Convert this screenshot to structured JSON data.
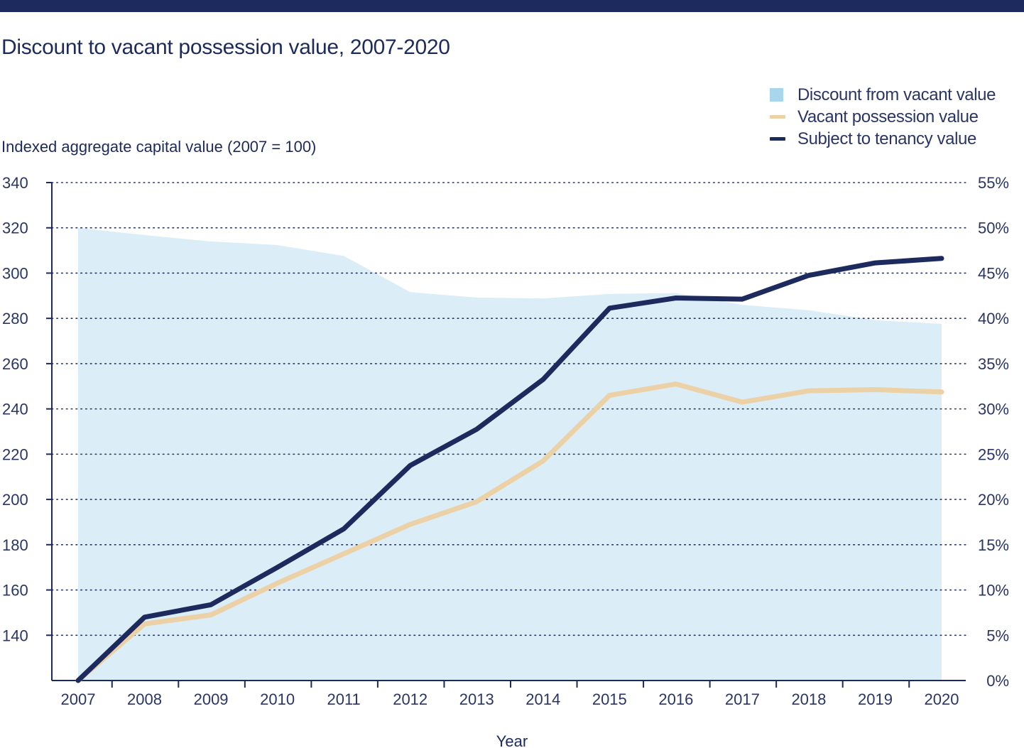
{
  "chart_data": {
    "type": "line",
    "title": "Discount to vacant possession value, 2007-2020",
    "ylabel": "Indexed aggregate capital value (2007 = 100)",
    "xlabel": "Year",
    "categories": [
      "2007",
      "2008",
      "2009",
      "2010",
      "2011",
      "2012",
      "2013",
      "2014",
      "2015",
      "2016",
      "2017",
      "2018",
      "2019",
      "2020"
    ],
    "y_left": {
      "min": 120,
      "max": 340,
      "ticks": [
        140,
        160,
        180,
        200,
        220,
        240,
        260,
        280,
        300,
        320,
        340
      ]
    },
    "y_right": {
      "min": 0,
      "max": 55,
      "ticks": [
        "0%",
        "5%",
        "10%",
        "15%",
        "20%",
        "25%",
        "30%",
        "35%",
        "40%",
        "45%",
        "50%",
        "55%"
      ]
    },
    "grid": true,
    "legend_position": "top-right",
    "series": [
      {
        "name": "Discount from vacant value",
        "type": "area",
        "axis": "right",
        "color": "#dbeef8",
        "legend_color": "#a9d6ec",
        "values": [
          50,
          49.2,
          48.5,
          48.1,
          46.9,
          42.9,
          42.3,
          42.2,
          42.7,
          42.8,
          41.5,
          40.9,
          39.8,
          39.4
        ]
      },
      {
        "name": "Vacant possession value",
        "type": "line",
        "axis": "left",
        "color": "#ecd0a6",
        "values": [
          120,
          145,
          149,
          163,
          176,
          189,
          199,
          217,
          246,
          251,
          243,
          248,
          248.5,
          247.5
        ]
      },
      {
        "name": "Subject to tenancy value",
        "type": "line",
        "axis": "left",
        "color": "#1c2a5e",
        "values": [
          120,
          148,
          153.5,
          170,
          187,
          215,
          231,
          253,
          284.5,
          289,
          288.5,
          299,
          304.5,
          306.5
        ]
      }
    ]
  }
}
